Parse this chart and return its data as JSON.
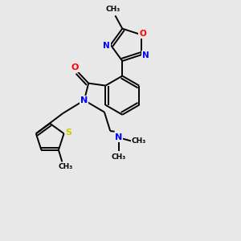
{
  "background_color": "#e8e8e8",
  "atom_colors": {
    "C": "#000000",
    "N": "#0000ff",
    "O": "#ff0000",
    "S": "#cccc00",
    "H": "#000000"
  },
  "figsize": [
    3.0,
    3.0
  ],
  "dpi": 100,
  "xlim": [
    0,
    10
  ],
  "ylim": [
    0,
    10
  ]
}
